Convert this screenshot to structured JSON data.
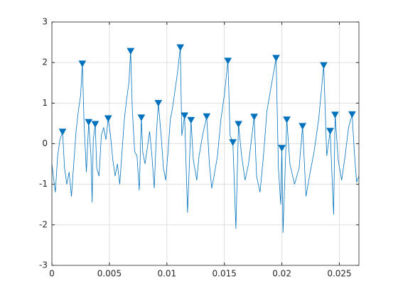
{
  "chart_data": {
    "type": "line",
    "xlim": [
      0,
      0.0267
    ],
    "ylim": [
      -3,
      3
    ],
    "xticks": [
      0,
      0.005,
      0.01,
      0.015,
      0.02,
      0.025
    ],
    "yticks": [
      -3,
      -2,
      -1,
      0,
      1,
      2,
      3
    ],
    "grid": true,
    "series": [
      {
        "color": "#0072bd",
        "x": [
          0,
          0.0003,
          0.0005,
          0.0007,
          0.00093,
          0.0011,
          0.0013,
          0.0015,
          0.0017,
          0.0019,
          0.0021,
          0.0023,
          0.0025,
          0.00265,
          0.0028,
          0.003,
          0.0032,
          0.0034,
          0.0035,
          0.0036,
          0.00377,
          0.0039,
          0.0041,
          0.0043,
          0.0045,
          0.0047,
          0.0049,
          0.0051,
          0.0053,
          0.0055,
          0.0057,
          0.0059,
          0.0061,
          0.0063,
          0.0065,
          0.0067,
          0.00685,
          0.007,
          0.0072,
          0.0074,
          0.0076,
          0.00778,
          0.0079,
          0.0081,
          0.0083,
          0.0085,
          0.0087,
          0.0089,
          0.0091,
          0.00926,
          0.0095,
          0.0097,
          0.0099,
          0.0101,
          0.0103,
          0.0105,
          0.0107,
          0.0109,
          0.01117,
          0.0113,
          0.01154,
          0.0118,
          0.0121,
          0.0123,
          0.0126,
          0.0128,
          0.0131,
          0.01346,
          0.0137,
          0.0139,
          0.0141,
          0.0144,
          0.0147,
          0.015,
          0.01531,
          0.0155,
          0.01574,
          0.016,
          0.01623,
          0.0165,
          0.0168,
          0.0171,
          0.01759,
          0.0178,
          0.0181,
          0.0184,
          0.0187,
          0.019,
          0.0195,
          0.0197,
          0.0199,
          0.02,
          0.0201,
          0.02043,
          0.0207,
          0.0211,
          0.0215,
          0.0218,
          0.0221,
          0.0224,
          0.0228,
          0.0232,
          0.0234,
          0.02364,
          0.0239,
          0.0242,
          0.0245,
          0.02463,
          0.0249,
          0.0252,
          0.0255,
          0.0258,
          0.02611,
          0.0263,
          0.0265,
          0.0267
        ],
        "values": [
          -0.5,
          -1.2,
          -0.3,
          0.1,
          0.29,
          -0.6,
          -1.0,
          -0.7,
          -1.3,
          -0.5,
          0.3,
          0.8,
          1.2,
          1.97,
          0.5,
          -0.7,
          0.53,
          -0.3,
          -1.45,
          0.1,
          0.48,
          -0.6,
          -0.8,
          0.2,
          0.4,
          0.1,
          0.62,
          0.2,
          -0.4,
          -0.8,
          -0.5,
          -1.0,
          -0.2,
          0.6,
          1.1,
          1.5,
          2.28,
          0.8,
          -0.2,
          -0.3,
          -1.15,
          0.64,
          -0.2,
          -0.5,
          -0.1,
          0.3,
          -0.3,
          -1.1,
          0.3,
          1.0,
          0.2,
          -0.6,
          -0.9,
          -0.2,
          0.6,
          0.9,
          1.3,
          1.7,
          2.37,
          0.2,
          0.69,
          -1.7,
          0.58,
          -0.4,
          -0.9,
          -0.3,
          0.2,
          0.67,
          -0.5,
          -1.1,
          -0.8,
          -0.3,
          0.6,
          1.2,
          2.04,
          0.2,
          0.03,
          -2.1,
          0.48,
          -0.3,
          -0.9,
          -0.5,
          0.66,
          -0.8,
          -1.2,
          -0.3,
          0.8,
          1.3,
          2.11,
          -0.6,
          -1.5,
          -0.11,
          -2.2,
          0.59,
          -0.5,
          -1.0,
          -0.6,
          0.43,
          -1.3,
          -0.8,
          -0.2,
          0.6,
          1.2,
          1.93,
          -0.3,
          0.31,
          -1.75,
          0.71,
          -0.4,
          -0.9,
          -0.3,
          0.4,
          0.72,
          -0.2,
          -0.95,
          -0.8
        ]
      },
      {
        "color": "#0072bd",
        "marker": "triangle-down",
        "x": [
          0.00093,
          0.00265,
          0.0032,
          0.00377,
          0.0049,
          0.00685,
          0.00778,
          0.00926,
          0.01117,
          0.01154,
          0.0121,
          0.01346,
          0.01531,
          0.01574,
          0.01623,
          0.01759,
          0.0195,
          0.02,
          0.02043,
          0.0218,
          0.02364,
          0.0242,
          0.02463,
          0.02611
        ],
        "values": [
          0.29,
          1.97,
          0.53,
          0.48,
          0.62,
          2.28,
          0.64,
          1.0,
          2.37,
          0.69,
          0.58,
          0.67,
          2.04,
          0.03,
          0.48,
          0.66,
          2.11,
          -0.11,
          0.59,
          0.43,
          1.93,
          0.31,
          0.71,
          0.72
        ]
      }
    ]
  }
}
